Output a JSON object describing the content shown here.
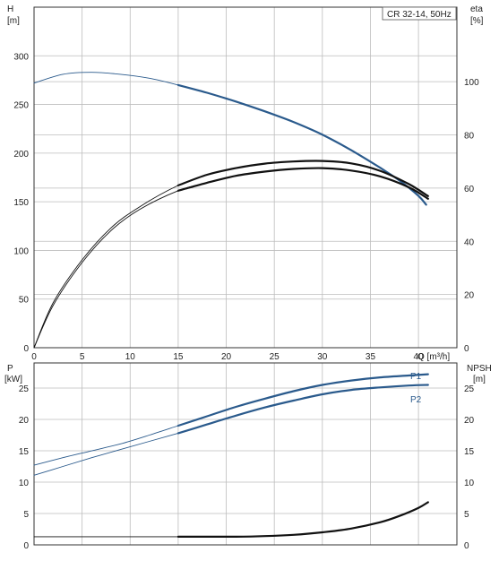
{
  "chart_data": [
    {
      "type": "line",
      "title": "CR 32-14, 50Hz",
      "xlabel": "Q [m³/h]",
      "ylabel_left": [
        "H",
        "[m]"
      ],
      "ylabel_right": [
        "eta",
        "[%]"
      ],
      "xlim": [
        0,
        44
      ],
      "ylim_left": [
        0,
        350
      ],
      "ylim_right": [
        0,
        128
      ],
      "x_ticks": [
        "0",
        "5",
        "10",
        "15",
        "20",
        "25",
        "30",
        "35",
        "40"
      ],
      "y_ticks_left": [
        "0",
        "50",
        "100",
        "150",
        "200",
        "250",
        "300"
      ],
      "y_ticks_right": [
        "0",
        "20",
        "40",
        "60",
        "80",
        "100"
      ],
      "grid": true,
      "series": [
        {
          "axis": "left",
          "color": "#2a5a8c",
          "x": [
            0,
            3,
            6,
            9,
            12,
            15,
            18,
            21,
            24,
            27,
            30,
            33,
            36,
            38,
            40,
            40.8
          ],
          "y": [
            272,
            281,
            283,
            281,
            277,
            270,
            262,
            253,
            243,
            232,
            219,
            203,
            185,
            172,
            156,
            147
          ],
          "bold_from": 15
        },
        {
          "axis": "right",
          "color": "#111111",
          "x": [
            0,
            2,
            5,
            8,
            11,
            15,
            18,
            21,
            24,
            27,
            30,
            33,
            36,
            39,
            41
          ],
          "y": [
            0,
            17,
            33,
            45,
            53,
            61,
            65,
            67.5,
            69.2,
            70,
            70.2,
            69.3,
            66.5,
            61.5,
            57
          ],
          "bold_from": 15
        },
        {
          "axis": "right",
          "color": "#111111",
          "x": [
            0,
            2,
            5,
            8,
            11,
            15,
            18,
            21,
            24,
            27,
            30,
            33,
            36,
            39,
            41
          ],
          "y": [
            0,
            16,
            32,
            44,
            52,
            59,
            62,
            64.6,
            66.2,
            67.2,
            67.5,
            66.6,
            64.4,
            60.3,
            56
          ],
          "bold_from": 15
        }
      ]
    },
    {
      "type": "line",
      "xlabel": "",
      "ylabel_left": [
        "P",
        "[kW]"
      ],
      "ylabel_right": [
        "NPSH",
        "[m]"
      ],
      "xlim": [
        0,
        44
      ],
      "ylim_left": [
        0,
        29
      ],
      "ylim_right": [
        0,
        29
      ],
      "y_ticks_left": [
        "0",
        "5",
        "10",
        "15",
        "20",
        "25"
      ],
      "y_ticks_right": [
        "0",
        "5",
        "10",
        "15",
        "20",
        "25"
      ],
      "grid": true,
      "series": [
        {
          "name": "P1",
          "axis": "left",
          "color": "#2a5a8c",
          "x": [
            0,
            3,
            6,
            9,
            12,
            15,
            18,
            21,
            24,
            27,
            30,
            33,
            36,
            39,
            41
          ],
          "y": [
            12.7,
            13.9,
            15,
            16.1,
            17.5,
            19,
            20.5,
            22,
            23.3,
            24.5,
            25.5,
            26.2,
            26.7,
            27,
            27.2
          ],
          "bold_from": 15
        },
        {
          "name": "P2",
          "axis": "left",
          "color": "#2a5a8c",
          "x": [
            0,
            3,
            6,
            9,
            12,
            15,
            18,
            21,
            24,
            27,
            30,
            33,
            36,
            39,
            41
          ],
          "y": [
            11.1,
            12.5,
            13.9,
            15.2,
            16.5,
            17.8,
            19.2,
            20.6,
            21.9,
            23,
            24,
            24.7,
            25.1,
            25.4,
            25.5
          ],
          "bold_from": 15
        },
        {
          "axis": "right",
          "color": "#111111",
          "x": [
            0,
            15,
            18,
            21,
            24,
            27,
            30,
            33,
            36,
            38,
            40,
            41
          ],
          "y": [
            1.3,
            1.3,
            1.3,
            1.3,
            1.4,
            1.6,
            2.0,
            2.6,
            3.6,
            4.6,
            5.9,
            6.8
          ],
          "bold_from": 15
        }
      ]
    }
  ]
}
